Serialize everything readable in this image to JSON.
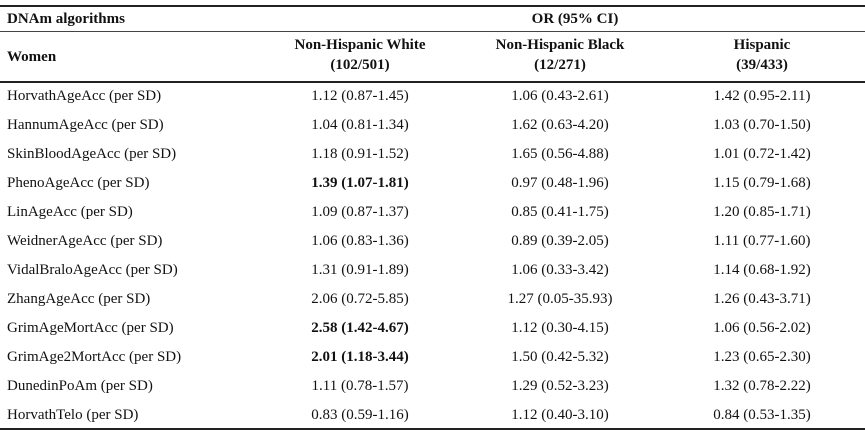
{
  "header": {
    "left": "DNAm algorithms",
    "span": "OR (95% CI)",
    "group_label": "Women",
    "columns": [
      {
        "name": "Non-Hispanic White",
        "n": "(102/501)"
      },
      {
        "name": "Non-Hispanic Black",
        "n": "(12/271)"
      },
      {
        "name": "Hispanic",
        "n": "(39/433)"
      }
    ]
  },
  "rows": [
    {
      "name": "HorvathAgeAcc (per SD)",
      "v": [
        "1.12 (0.87-1.45)",
        "1.06 (0.43-2.61)",
        "1.42 (0.95-2.11)"
      ],
      "bold": [
        false,
        false,
        false
      ]
    },
    {
      "name": "HannumAgeAcc (per SD)",
      "v": [
        "1.04 (0.81-1.34)",
        "1.62 (0.63-4.20)",
        "1.03 (0.70-1.50)"
      ],
      "bold": [
        false,
        false,
        false
      ]
    },
    {
      "name": "SkinBloodAgeAcc (per SD)",
      "v": [
        "1.18 (0.91-1.52)",
        "1.65 (0.56-4.88)",
        "1.01 (0.72-1.42)"
      ],
      "bold": [
        false,
        false,
        false
      ]
    },
    {
      "name": "PhenoAgeAcc (per SD)",
      "v": [
        "1.39 (1.07-1.81)",
        "0.97 (0.48-1.96)",
        "1.15 (0.79-1.68)"
      ],
      "bold": [
        true,
        false,
        false
      ]
    },
    {
      "name": "LinAgeAcc (per SD)",
      "v": [
        "1.09 (0.87-1.37)",
        "0.85 (0.41-1.75)",
        "1.20 (0.85-1.71)"
      ],
      "bold": [
        false,
        false,
        false
      ]
    },
    {
      "name": "WeidnerAgeAcc (per SD)",
      "v": [
        "1.06 (0.83-1.36)",
        "0.89 (0.39-2.05)",
        "1.11 (0.77-1.60)"
      ],
      "bold": [
        false,
        false,
        false
      ]
    },
    {
      "name": "VidalBraloAgeAcc (per SD)",
      "v": [
        "1.31 (0.91-1.89)",
        "1.06 (0.33-3.42)",
        "1.14 (0.68-1.92)"
      ],
      "bold": [
        false,
        false,
        false
      ]
    },
    {
      "name": "ZhangAgeAcc (per SD)",
      "v": [
        "2.06 (0.72-5.85)",
        "1.27 (0.05-35.93)",
        "1.26 (0.43-3.71)"
      ],
      "bold": [
        false,
        false,
        false
      ]
    },
    {
      "name": "GrimAgeMortAcc (per SD)",
      "v": [
        "2.58 (1.42-4.67)",
        "1.12 (0.30-4.15)",
        "1.06 (0.56-2.02)"
      ],
      "bold": [
        true,
        false,
        false
      ]
    },
    {
      "name": "GrimAge2MortAcc (per SD)",
      "v": [
        "2.01 (1.18-3.44)",
        "1.50 (0.42-5.32)",
        "1.23 (0.65-2.30)"
      ],
      "bold": [
        true,
        false,
        false
      ]
    },
    {
      "name": "DunedinPoAm (per SD)",
      "v": [
        "1.11 (0.78-1.57)",
        "1.29 (0.52-3.23)",
        "1.32 (0.78-2.22)"
      ],
      "bold": [
        false,
        false,
        false
      ]
    },
    {
      "name": "HorvathTelo (per SD)",
      "v": [
        "0.83 (0.59-1.16)",
        "1.12 (0.40-3.10)",
        "0.84 (0.53-1.35)"
      ],
      "bold": [
        false,
        false,
        false
      ]
    }
  ]
}
